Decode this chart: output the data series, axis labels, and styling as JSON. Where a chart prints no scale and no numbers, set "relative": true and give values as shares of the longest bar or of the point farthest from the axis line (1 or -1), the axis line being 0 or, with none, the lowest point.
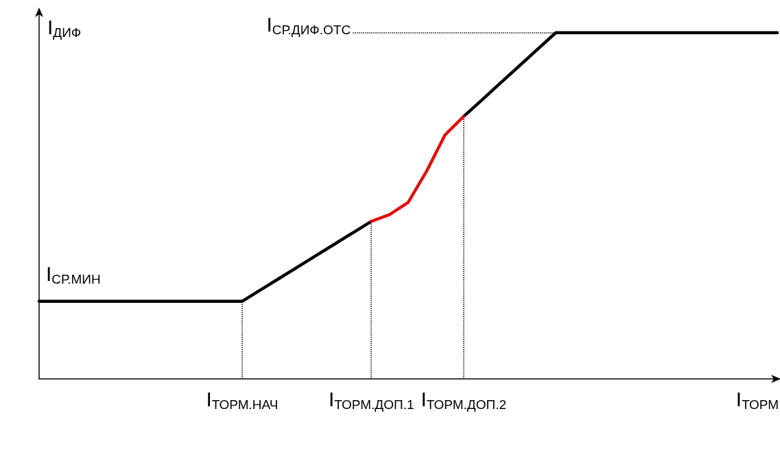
{
  "chart_data": {
    "type": "line",
    "relative": true,
    "xlabel": "I$_{ТОРМ}$",
    "ylabel": "I$_{ДИФ}$",
    "categories": [
      null,
      null,
      null,
      null,
      null,
      null,
      null,
      null,
      null,
      null,
      null,
      "I$_{ТОРМ.НАЧ}$",
      null,
      null,
      null,
      null,
      null,
      null,
      "I$_{ТОРМ.ДОП.1}$",
      null,
      null,
      null,
      null,
      "I$_{ТОРМ.ДОП.2}$",
      null,
      null,
      null,
      null,
      null,
      null,
      null,
      null,
      null,
      null,
      null,
      null,
      null,
      null,
      null,
      null,
      null
    ],
    "series": [
      {
        "color": "#000000",
        "values": [
          0.224,
          0.224,
          0.224,
          0.224,
          0.224,
          0.224,
          0.224,
          0.224,
          0.224,
          0.224,
          0.224,
          0.224,
          0.257,
          0.29,
          0.323,
          0.356,
          0.389,
          0.422,
          0.455,
          null,
          null,
          null,
          null,
          0.758,
          0.806,
          0.855,
          0.903,
          0.952,
          1,
          1,
          1,
          1,
          1,
          1,
          1,
          1,
          1,
          1,
          1,
          1,
          1
        ]
      },
      {
        "color": "#e01010",
        "values": [
          null,
          null,
          null,
          null,
          null,
          null,
          null,
          null,
          null,
          null,
          null,
          null,
          null,
          null,
          null,
          null,
          null,
          null,
          0.455,
          0.475,
          0.51,
          0.6,
          0.705,
          0.758,
          null,
          null,
          null,
          null,
          null,
          null,
          null,
          null,
          null,
          null,
          null,
          null,
          null,
          null,
          null,
          null,
          null
        ]
      }
    ],
    "ref_lines": [
      {
        "axis": "x",
        "value": "I$_{ТОРМ.НАЧ}$",
        "line_style": "dotted",
        "color": "#000000"
      },
      {
        "axis": "x",
        "value": "I$_{ТОРМ.ДОП.1}$",
        "line_style": "dotted",
        "color": "#000000"
      },
      {
        "axis": "x",
        "value": "I$_{ТОРМ.ДОП.2}$",
        "line_style": "dotted",
        "color": "#000000"
      },
      {
        "axis": "y",
        "value": 1,
        "label": "I$_{СР.ДИФ.ОТС}$",
        "line_style": "dotted",
        "color": "#000000"
      }
    ],
    "annotations": [
      {
        "text": "I$_{СР.МИН}$"
      }
    ],
    "marker": "none",
    "line_style": "solid",
    "grid": false
  }
}
